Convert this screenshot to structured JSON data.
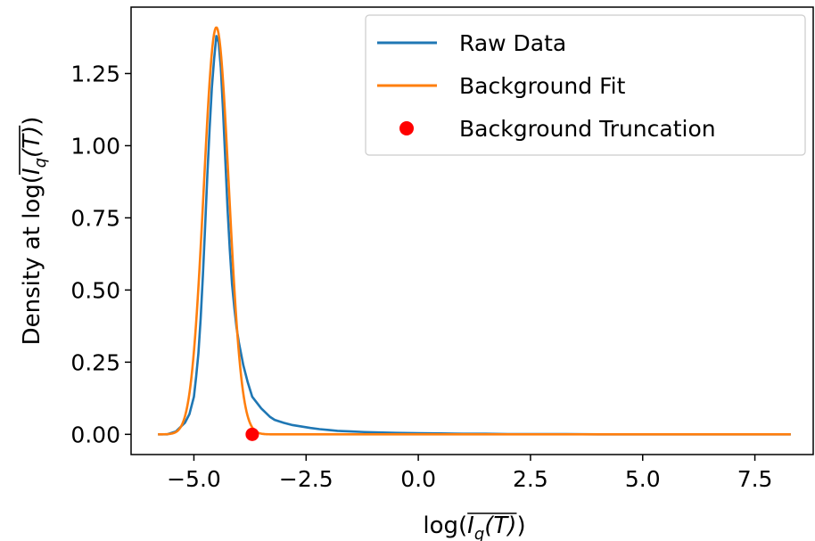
{
  "chart_data": {
    "type": "line",
    "xlabel_parts": {
      "prefix": "log(",
      "overline_base": "I",
      "subscript": "q",
      "overline_arg": "(T)",
      "suffix": ")"
    },
    "ylabel_parts": {
      "prefix": "Density at log(",
      "overline_base": "I",
      "subscript": "q",
      "overline_arg": "(T)",
      "suffix": ")"
    },
    "xlim": [
      -6.4,
      8.8
    ],
    "ylim": [
      -0.07,
      1.48
    ],
    "x_ticks": [
      -5.0,
      -2.5,
      0.0,
      2.5,
      5.0,
      7.5
    ],
    "x_tick_labels": [
      "−5.0",
      "−2.5",
      "0.0",
      "2.5",
      "5.0",
      "7.5"
    ],
    "y_ticks": [
      0.0,
      0.25,
      0.5,
      0.75,
      1.0,
      1.25
    ],
    "y_tick_labels": [
      "0.00",
      "0.25",
      "0.50",
      "0.75",
      "1.00",
      "1.25"
    ],
    "legend_position": "top-right",
    "series": [
      {
        "name": "Raw Data",
        "kind": "line",
        "color": "#1f77b4",
        "x": [
          -5.8,
          -5.6,
          -5.4,
          -5.2,
          -5.1,
          -5.0,
          -4.95,
          -4.9,
          -4.85,
          -4.8,
          -4.75,
          -4.7,
          -4.65,
          -4.6,
          -4.55,
          -4.5,
          -4.45,
          -4.4,
          -4.35,
          -4.3,
          -4.25,
          -4.2,
          -4.15,
          -4.1,
          -4.05,
          -4.0,
          -3.95,
          -3.9,
          -3.85,
          -3.8,
          -3.7,
          -3.6,
          -3.5,
          -3.4,
          -3.3,
          -3.2,
          -3.0,
          -2.8,
          -2.6,
          -2.4,
          -2.2,
          -2.0,
          -1.8,
          -1.5,
          -1.2,
          -1.0,
          -0.5,
          0.0,
          0.5,
          1.0,
          1.5,
          2.0,
          2.5,
          3.0,
          4.0,
          5.0,
          6.0,
          7.0,
          8.3
        ],
        "y": [
          0.0,
          0.0,
          0.01,
          0.04,
          0.07,
          0.13,
          0.2,
          0.28,
          0.4,
          0.55,
          0.72,
          0.9,
          1.06,
          1.2,
          1.3,
          1.38,
          1.36,
          1.27,
          1.12,
          0.95,
          0.78,
          0.64,
          0.52,
          0.44,
          0.37,
          0.32,
          0.28,
          0.24,
          0.21,
          0.18,
          0.13,
          0.11,
          0.09,
          0.075,
          0.06,
          0.05,
          0.04,
          0.032,
          0.027,
          0.022,
          0.018,
          0.015,
          0.012,
          0.01,
          0.008,
          0.007,
          0.005,
          0.004,
          0.003,
          0.002,
          0.002,
          0.001,
          0.001,
          0.001,
          0.0,
          0.0,
          0.0,
          0.0,
          0.0
        ]
      },
      {
        "name": "Background Fit",
        "kind": "line",
        "color": "#ff7f0e",
        "gaussian": {
          "mu": -4.5,
          "sigma": 0.28,
          "amp": 1.41
        },
        "x_range": [
          -5.8,
          8.3
        ]
      },
      {
        "name": "Background Truncation",
        "kind": "scatter",
        "color": "#ff0000",
        "x": [
          -3.7
        ],
        "y": [
          0.0
        ]
      }
    ]
  }
}
